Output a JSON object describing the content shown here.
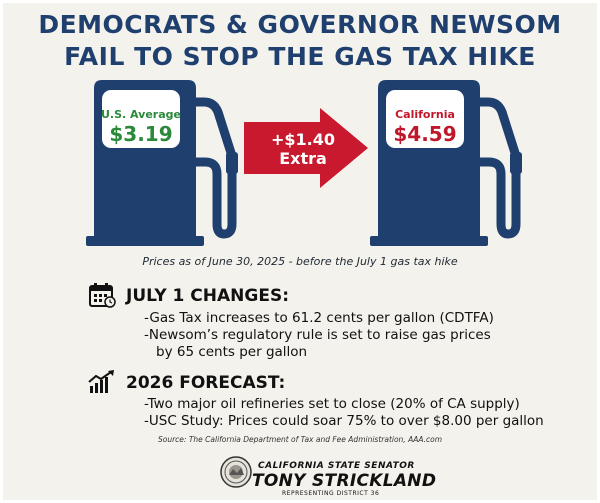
{
  "header": {
    "line1": "DEMOCRATS & GOVERNOR NEWSOM",
    "line2": "FAIL TO STOP THE GAS TAX HIKE"
  },
  "pumps": {
    "left": {
      "label": "U.S. Average",
      "price": "$3.19"
    },
    "right": {
      "label": "California",
      "price": "$4.59"
    }
  },
  "arrow": {
    "line1": "+$1.40",
    "line2": "Extra"
  },
  "caption": "Prices as of June 30, 2025 - before the July 1 gas tax hike",
  "changes": {
    "heading": "JULY 1 CHANGES:",
    "items": [
      "-Gas Tax increases to 61.2 cents per gallon (CDTFA)",
      "-Newsom’s regulatory rule is set to raise gas prices",
      "by 65 cents per gallon"
    ]
  },
  "forecast": {
    "heading": "2026 FORECAST:",
    "items": [
      "-Two major oil refineries set to close (20% of CA supply)",
      "-USC Study: Prices could soar 75% to over $8.00 per gallon"
    ]
  },
  "source": "Source: The California Department of Tax and Fee Administration, AAA.com",
  "signature": {
    "title": "CALIFORNIA STATE SENATOR",
    "name": "TONY STRICKLAND",
    "district": "REPRESENTING DISTRICT 36"
  },
  "colors": {
    "navy": "#1f3f6e",
    "arrow_red": "#c8192e",
    "green_price": "#2a8a3a",
    "red_price": "#c0182b"
  },
  "icons": {
    "changes": "calendar-icon",
    "forecast": "trend-up-chart-icon",
    "seal": "state-seal-logo"
  }
}
